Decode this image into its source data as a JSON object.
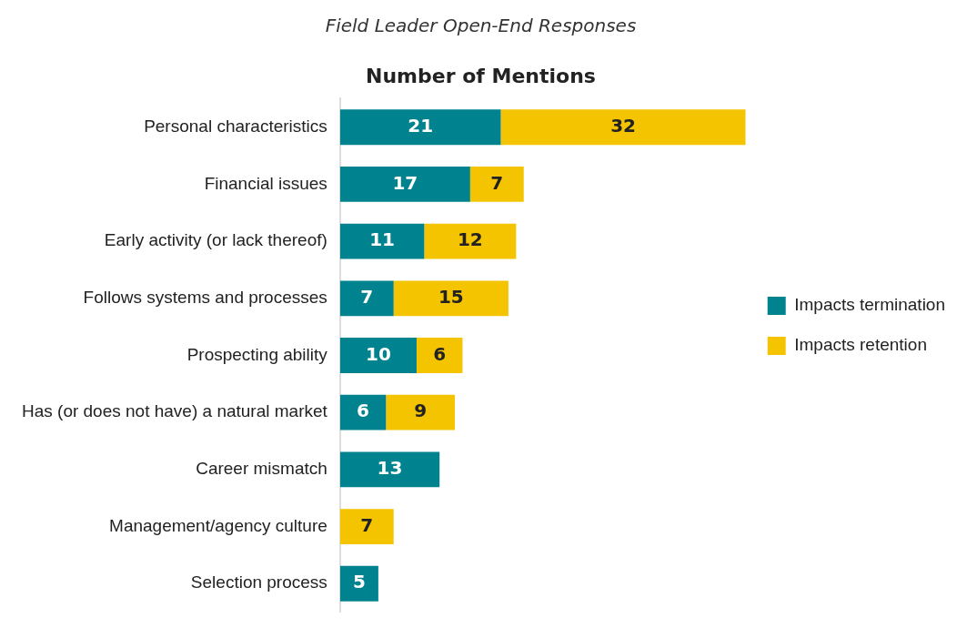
{
  "chart_data": {
    "type": "bar",
    "orientation": "horizontal",
    "stacked": true,
    "title": "Field Leader Open-End Responses",
    "subtitle": "Number of Mentions",
    "categories": [
      "Personal characteristics",
      "Financial issues",
      "Early activity (or lack thereof)",
      "Follows systems and processes",
      "Prospecting ability",
      "Has (or does not have) a natural market",
      "Career mismatch",
      "Management/agency culture",
      "Selection process"
    ],
    "series": [
      {
        "name": "Impacts termination",
        "color": "#00838f",
        "values": [
          21,
          17,
          11,
          7,
          10,
          6,
          13,
          null,
          5
        ]
      },
      {
        "name": "Impacts retention",
        "color": "#f5c400",
        "values": [
          32,
          7,
          12,
          15,
          6,
          9,
          null,
          7,
          null
        ]
      }
    ],
    "xlim": [
      0,
      53
    ],
    "data_labels": true,
    "legend": "right",
    "tick_labels": "y"
  }
}
